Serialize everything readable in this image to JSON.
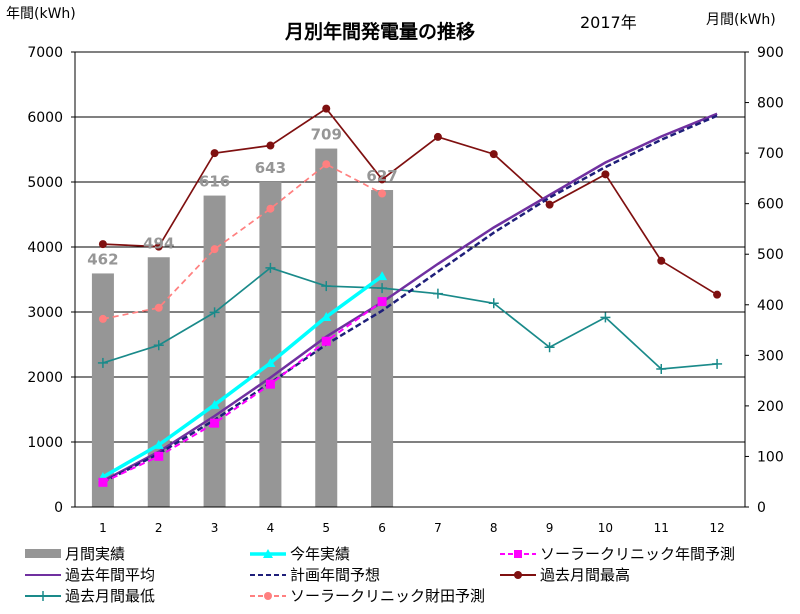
{
  "chart_data": {
    "type": "bar",
    "title": "月別年間発電量の推移",
    "subtitle": "2017年",
    "y_left_label": "年間(kWh)",
    "y_right_label": "月間(kWh)",
    "x": [
      1,
      2,
      3,
      4,
      5,
      6,
      7,
      8,
      9,
      10,
      11,
      12
    ],
    "ylim_left": [
      0,
      7000
    ],
    "ylim_right": [
      0,
      900
    ],
    "yticks_left": [
      0,
      1000,
      2000,
      3000,
      4000,
      5000,
      6000,
      7000
    ],
    "yticks_right": [
      0,
      100,
      200,
      300,
      400,
      500,
      600,
      700,
      800,
      900
    ],
    "grid": "horizontal",
    "legend_position": "bottom",
    "series": [
      {
        "name": "月間実績",
        "kind": "bar",
        "axis": "right",
        "color": "#969696",
        "values": [
          462,
          494,
          616,
          643,
          709,
          627,
          null,
          null,
          null,
          null,
          null,
          null
        ],
        "labels": [
          "462",
          "494",
          "616",
          "643",
          "709",
          "627"
        ]
      },
      {
        "name": "今年実績",
        "kind": "line",
        "axis": "left",
        "color": "#00ffff",
        "marker": "triangle",
        "values": [
          462,
          956,
          1572,
          2215,
          2924,
          3551,
          null,
          null,
          null,
          null,
          null,
          null
        ]
      },
      {
        "name": "ソーラークリニック年間予測",
        "kind": "line",
        "axis": "left",
        "color": "#ff00ff",
        "marker": "square",
        "dash": true,
        "values": [
          380,
          780,
          1290,
          1890,
          2550,
          3160,
          null,
          null,
          null,
          null,
          null,
          null
        ]
      },
      {
        "name": "過去年間平均",
        "kind": "line",
        "axis": "left",
        "color": "#7030a0",
        "values": [
          400,
          850,
          1400,
          1990,
          2620,
          3150,
          3740,
          4300,
          4800,
          5300,
          5700,
          6050
        ]
      },
      {
        "name": "計画年間予想",
        "kind": "line",
        "axis": "left",
        "color": "#1f1f7a",
        "dash": true,
        "values": [
          380,
          820,
          1340,
          1910,
          2500,
          3020,
          3620,
          4220,
          4760,
          5230,
          5650,
          6020
        ]
      },
      {
        "name": "過去月間最高",
        "kind": "line",
        "axis": "right",
        "color": "#7f1010",
        "marker": "circle",
        "values": [
          520,
          515,
          700,
          715,
          788,
          648,
          732,
          698,
          598,
          658,
          487,
          420
        ]
      },
      {
        "name": "過去月間最低",
        "kind": "line",
        "axis": "right",
        "color": "#1a8a8a",
        "marker": "plus",
        "values": [
          285,
          320,
          385,
          473,
          437,
          433,
          422,
          403,
          316,
          375,
          273,
          283
        ]
      },
      {
        "name": "ソーラークリニック財田予測",
        "kind": "line",
        "axis": "right",
        "color": "#ff8080",
        "marker": "circle",
        "dash": true,
        "values": [
          372,
          394,
          510,
          590,
          678,
          620,
          null,
          null,
          null,
          null,
          null,
          null
        ]
      }
    ]
  }
}
